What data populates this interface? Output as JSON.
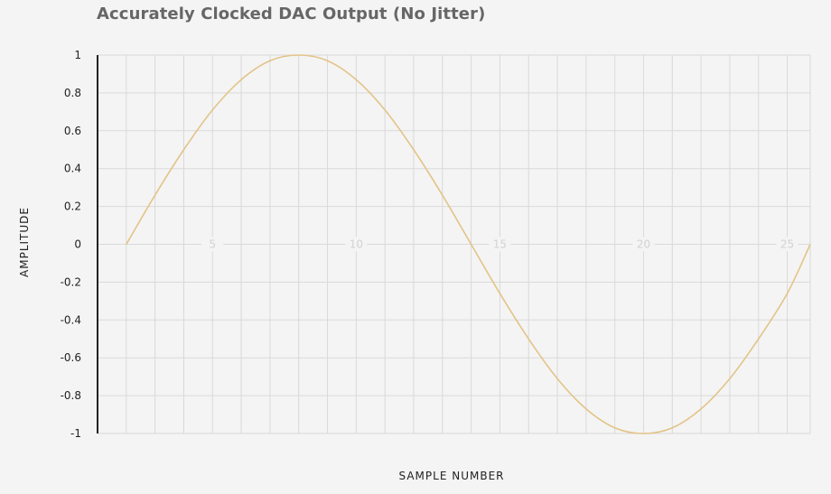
{
  "chart_data": {
    "type": "line",
    "title": "Accurately Clocked DAC Output (No Jitter)",
    "xlabel": "SAMPLE NUMBER",
    "ylabel": "AMPLITUDE",
    "xlim": [
      1,
      25.8
    ],
    "ylim": [
      -1,
      1
    ],
    "xticks": [
      5,
      10,
      15,
      20,
      25
    ],
    "yticks": [
      1,
      0.8,
      0.6,
      0.4,
      0.2,
      0,
      -0.2,
      -0.4,
      -0.6,
      -0.8,
      -1
    ],
    "ytick_labels": [
      "1",
      "0.8",
      "0.6",
      "0.4",
      "0.2",
      "0",
      "-0.2",
      "-0.4",
      "-0.6",
      "-0.8",
      "-1"
    ],
    "grid": true,
    "series": [
      {
        "color": "#e3c488",
        "x": [
          2,
          3,
          4,
          5,
          6,
          7,
          8,
          9,
          10,
          11,
          12,
          13,
          14,
          15,
          16,
          17,
          18,
          19,
          20,
          21,
          22,
          23,
          24,
          25,
          25.8
        ],
        "values": [
          0,
          0.26,
          0.5,
          0.71,
          0.87,
          0.97,
          1,
          0.97,
          0.87,
          0.71,
          0.5,
          0.26,
          0,
          -0.26,
          -0.5,
          -0.71,
          -0.87,
          -0.97,
          -1,
          -0.97,
          -0.87,
          -0.71,
          -0.5,
          -0.26,
          0
        ]
      }
    ]
  }
}
